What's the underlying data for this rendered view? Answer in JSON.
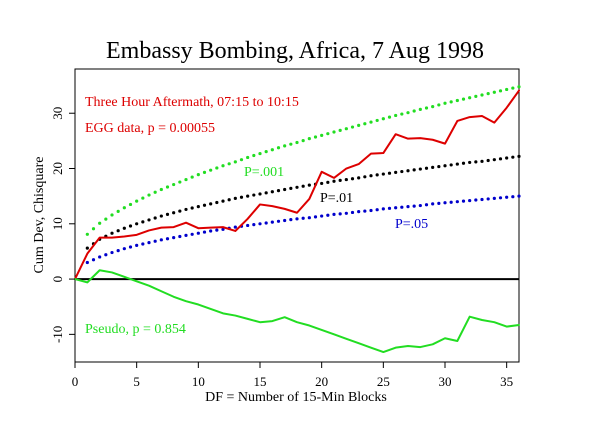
{
  "chart_data": {
    "type": "line",
    "title": "Embassy Bombing, Africa, 7 Aug 1998",
    "xlabel": "DF = Number of 15-Min Blocks",
    "ylabel": "Cum Dev, Chisquare",
    "xlim": [
      0,
      36
    ],
    "ylim": [
      -15,
      38
    ],
    "xticks": [
      0,
      5,
      10,
      15,
      20,
      25,
      30,
      35
    ],
    "yticks": [
      -10,
      0,
      10,
      20,
      30
    ],
    "grid": false,
    "zero_line": true,
    "annotations": {
      "subtitle_line1": "Three Hour Aftermath, 07:15 to 10:15",
      "subtitle_line2": "EGG data, p = 0.00055",
      "p001_label": "P=.001",
      "p01_label": "P=.01",
      "p05_label": "P=.05",
      "pseudo_label": "Pseudo, p = 0.854"
    },
    "series": [
      {
        "kind": "egg",
        "color": "#dd0000",
        "style": "solid",
        "x": [
          0,
          1,
          2,
          3,
          4,
          5,
          6,
          7,
          8,
          9,
          10,
          11,
          12,
          13,
          14,
          15,
          16,
          17,
          18,
          19,
          20,
          21,
          22,
          23,
          24,
          25,
          26,
          27,
          28,
          29,
          30,
          31,
          32,
          33,
          34,
          35,
          36
        ],
        "values": [
          0.0,
          4.6,
          7.5,
          7.5,
          7.7,
          8.0,
          8.8,
          9.3,
          9.4,
          10.2,
          9.2,
          9.3,
          9.4,
          8.7,
          10.9,
          13.5,
          13.2,
          12.7,
          12.0,
          14.5,
          19.4,
          18.3,
          20.0,
          20.8,
          22.7,
          22.8,
          26.2,
          25.4,
          25.5,
          25.2,
          24.5,
          28.6,
          29.3,
          29.5,
          28.3,
          31.0,
          34.1
        ]
      },
      {
        "kind": "pseudo",
        "color": "#22dd22",
        "style": "solid",
        "x": [
          0,
          1,
          2,
          3,
          4,
          5,
          6,
          7,
          8,
          9,
          10,
          11,
          12,
          13,
          14,
          15,
          16,
          17,
          18,
          19,
          20,
          21,
          22,
          23,
          24,
          25,
          26,
          27,
          28,
          29,
          30,
          31,
          32,
          33,
          34,
          35,
          36
        ],
        "values": [
          0.0,
          -0.6,
          1.6,
          1.2,
          0.4,
          -0.4,
          -1.2,
          -2.2,
          -3.2,
          -4.0,
          -4.6,
          -5.4,
          -6.2,
          -6.6,
          -7.2,
          -7.8,
          -7.6,
          -6.9,
          -7.8,
          -8.4,
          -9.2,
          -10.0,
          -10.8,
          -11.6,
          -12.4,
          -13.2,
          -12.4,
          -12.1,
          -12.3,
          -11.8,
          -10.7,
          -11.2,
          -6.8,
          -7.4,
          -7.8,
          -8.6,
          -8.3
        ]
      },
      {
        "kind": "p001",
        "color": "#22dd22",
        "style": "dotted",
        "x": [
          1,
          2,
          3,
          4,
          5,
          6,
          7,
          8,
          9,
          10,
          11,
          12,
          13,
          14,
          15,
          16,
          17,
          18,
          19,
          20,
          21,
          22,
          23,
          24,
          25,
          26,
          27,
          28,
          29,
          30,
          31,
          32,
          33,
          34,
          35,
          36
        ],
        "values": [
          8.1,
          10.1,
          11.6,
          12.9,
          14.1,
          15.2,
          16.2,
          17.1,
          18.0,
          18.9,
          19.7,
          20.5,
          21.2,
          22.0,
          22.7,
          23.4,
          24.1,
          24.7,
          25.4,
          26.0,
          26.6,
          27.2,
          27.8,
          28.4,
          29.0,
          29.6,
          30.1,
          30.7,
          31.2,
          31.8,
          32.3,
          32.8,
          33.3,
          33.8,
          34.3,
          34.8
        ]
      },
      {
        "kind": "p01",
        "color": "#000000",
        "style": "dotted",
        "x": [
          1,
          2,
          3,
          4,
          5,
          6,
          7,
          8,
          9,
          10,
          11,
          12,
          13,
          14,
          15,
          16,
          17,
          18,
          19,
          20,
          21,
          22,
          23,
          24,
          25,
          26,
          27,
          28,
          29,
          30,
          31,
          32,
          33,
          34,
          35,
          36
        ],
        "values": [
          5.6,
          7.2,
          8.3,
          9.2,
          10.0,
          10.7,
          11.4,
          12.0,
          12.6,
          13.1,
          13.6,
          14.1,
          14.6,
          15.0,
          15.4,
          15.8,
          16.2,
          16.6,
          17.0,
          17.3,
          17.7,
          18.0,
          18.3,
          18.7,
          19.0,
          19.3,
          19.6,
          19.9,
          20.2,
          20.5,
          20.8,
          21.1,
          21.3,
          21.6,
          21.9,
          22.2
        ]
      },
      {
        "kind": "p05",
        "color": "#0000cc",
        "style": "dotted",
        "x": [
          1,
          2,
          3,
          4,
          5,
          6,
          7,
          8,
          9,
          10,
          11,
          12,
          13,
          14,
          15,
          16,
          17,
          18,
          19,
          20,
          21,
          22,
          23,
          24,
          25,
          26,
          27,
          28,
          29,
          30,
          31,
          32,
          33,
          34,
          35,
          36
        ],
        "values": [
          3.0,
          4.0,
          4.8,
          5.5,
          6.1,
          6.6,
          7.1,
          7.5,
          7.9,
          8.3,
          8.7,
          9.0,
          9.4,
          9.7,
          10.0,
          10.3,
          10.6,
          10.9,
          11.1,
          11.4,
          11.7,
          11.9,
          12.2,
          12.4,
          12.7,
          12.9,
          13.1,
          13.3,
          13.6,
          13.8,
          14.0,
          14.2,
          14.4,
          14.6,
          14.8,
          15.0
        ]
      }
    ]
  }
}
